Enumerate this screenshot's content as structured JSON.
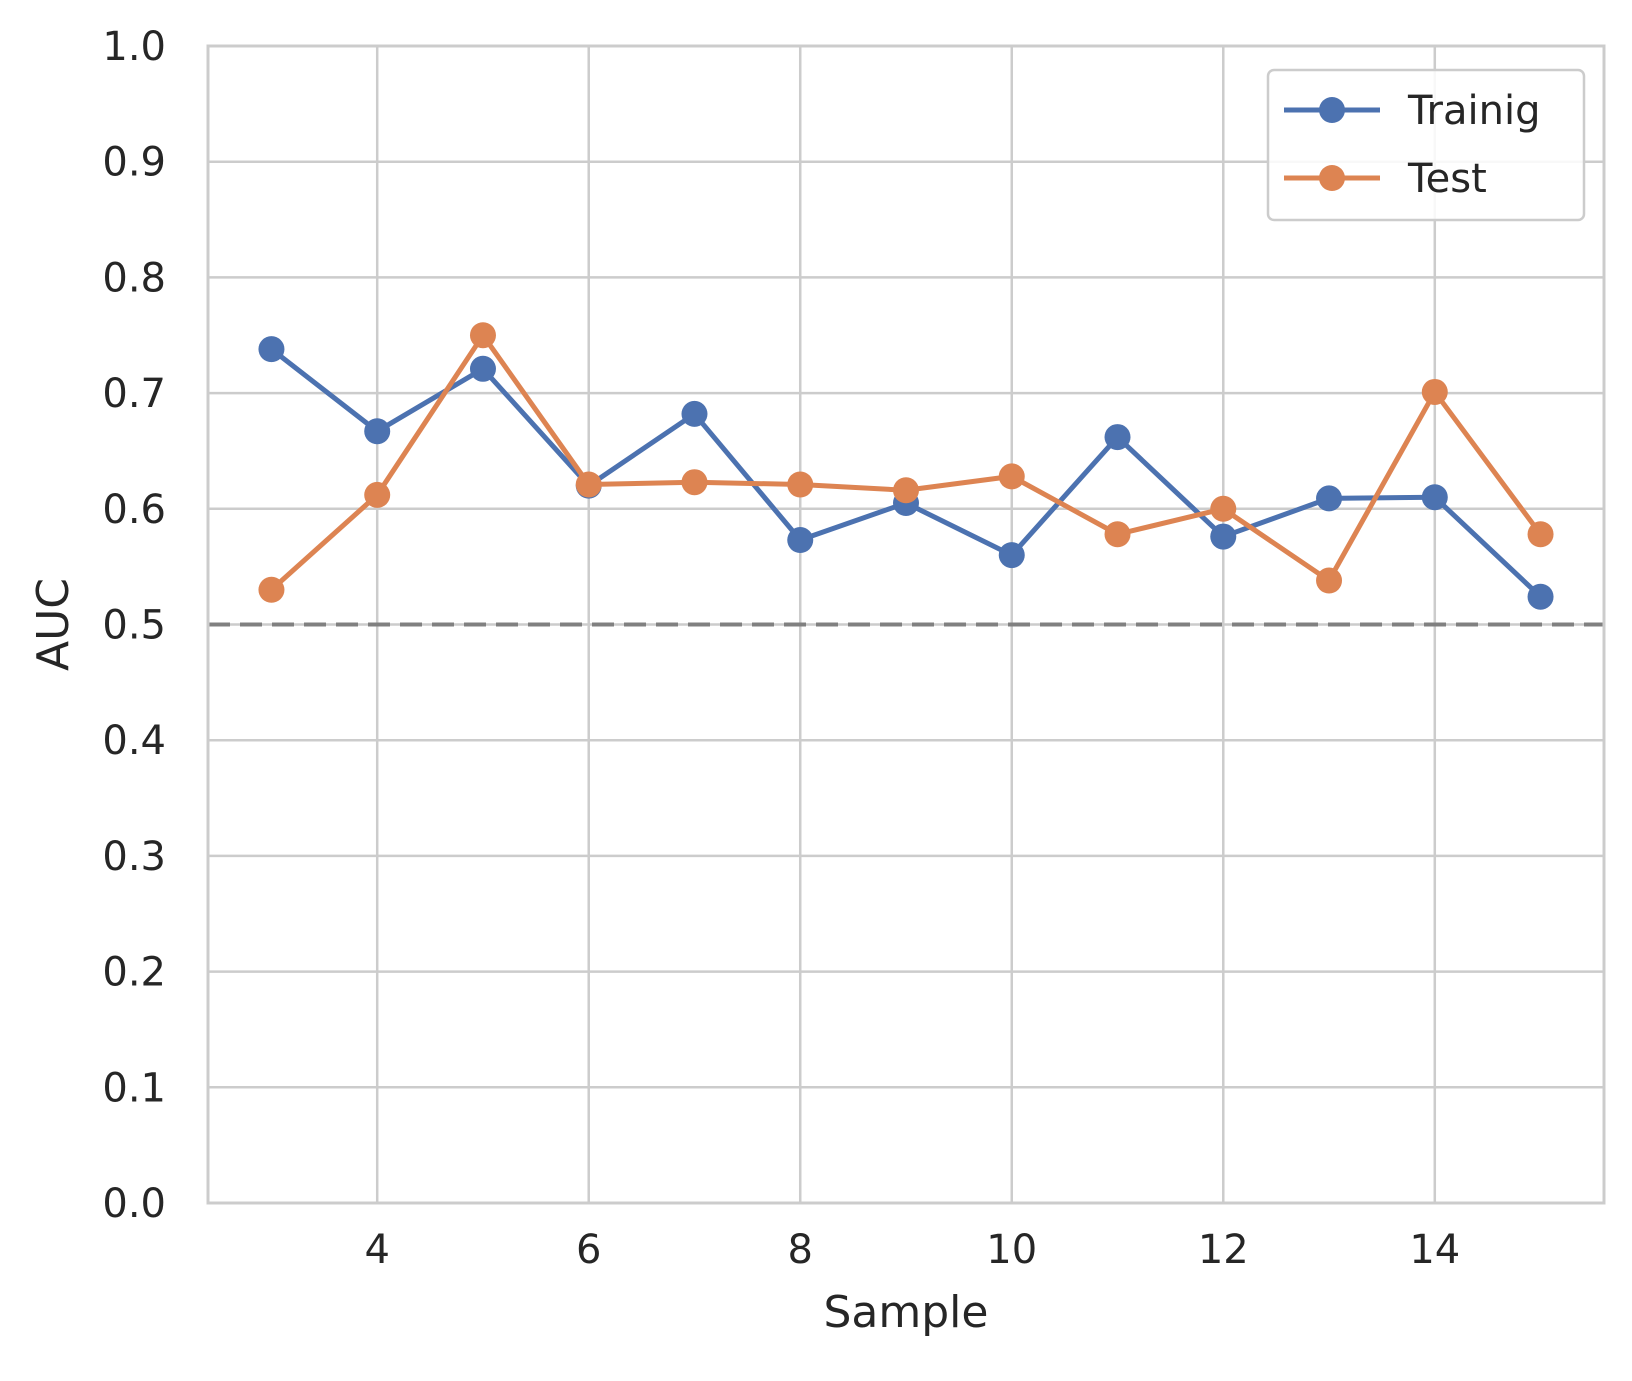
{
  "chart_data": {
    "type": "line",
    "title": "",
    "xlabel": "Sample",
    "ylabel": "AUC",
    "xlim": [
      2.4,
      15.6
    ],
    "ylim": [
      0.0,
      1.0
    ],
    "xticks": [
      4,
      6,
      8,
      10,
      12,
      14
    ],
    "xtick_labels": [
      "4",
      "6",
      "8",
      "10",
      "12",
      "14"
    ],
    "yticks": [
      0.0,
      0.1,
      0.2,
      0.3,
      0.4,
      0.5,
      0.6,
      0.7,
      0.8,
      0.9,
      1.0
    ],
    "ytick_labels": [
      "0.0",
      "0.1",
      "0.2",
      "0.3",
      "0.4",
      "0.5",
      "0.6",
      "0.7",
      "0.8",
      "0.9",
      "1.0"
    ],
    "grid": true,
    "legend_position": "top-right",
    "x": [
      3,
      4,
      5,
      6,
      7,
      8,
      9,
      10,
      11,
      12,
      13,
      14,
      15
    ],
    "series": [
      {
        "name": "Trainig",
        "color": "#4c72b0",
        "values": [
          0.738,
          0.667,
          0.721,
          0.62,
          0.682,
          0.573,
          0.605,
          0.56,
          0.662,
          0.576,
          0.609,
          0.61,
          0.524
        ]
      },
      {
        "name": "Test",
        "color": "#dd8452",
        "values": [
          0.53,
          0.612,
          0.75,
          0.621,
          0.623,
          0.621,
          0.616,
          0.628,
          0.578,
          0.6,
          0.538,
          0.701,
          0.578
        ]
      }
    ],
    "reference_line": {
      "y": 0.5,
      "style": "dashed",
      "color": "#808080"
    }
  }
}
